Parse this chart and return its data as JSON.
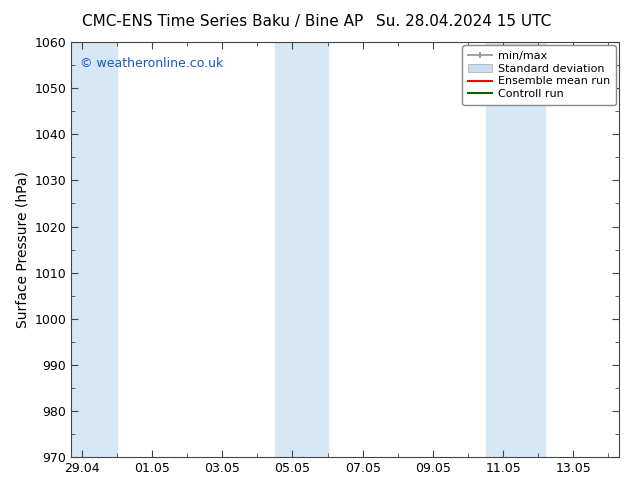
{
  "title_left": "CMC-ENS Time Series Baku / Bine AP",
  "title_right": "Su. 28.04.2024 15 UTC",
  "ylabel": "Surface Pressure (hPa)",
  "ylim": [
    970,
    1060
  ],
  "yticks": [
    970,
    980,
    990,
    1000,
    1010,
    1020,
    1030,
    1040,
    1050,
    1060
  ],
  "xtick_labels": [
    "29.04",
    "01.05",
    "03.05",
    "05.05",
    "07.05",
    "09.05",
    "11.05",
    "13.05"
  ],
  "xtick_positions": [
    0,
    2,
    4,
    6,
    8,
    10,
    12,
    14
  ],
  "xlim": [
    -0.3,
    15.3
  ],
  "shaded_bands": [
    {
      "x_start": -0.3,
      "x_end": 1.0
    },
    {
      "x_start": 5.5,
      "x_end": 7.0
    },
    {
      "x_start": 11.5,
      "x_end": 13.2
    }
  ],
  "band_color": "#d6e8f5",
  "watermark_text": "© weatheronline.co.uk",
  "watermark_color": "#1a55cc",
  "background_color": "#ffffff",
  "legend_minmax_color": "#999999",
  "legend_std_color": "#c8ddf0",
  "legend_ensemble_color": "#ff0000",
  "legend_control_color": "#006600",
  "title_fontsize": 11,
  "tick_fontsize": 9,
  "ylabel_fontsize": 10,
  "watermark_fontsize": 9,
  "legend_fontsize": 8
}
